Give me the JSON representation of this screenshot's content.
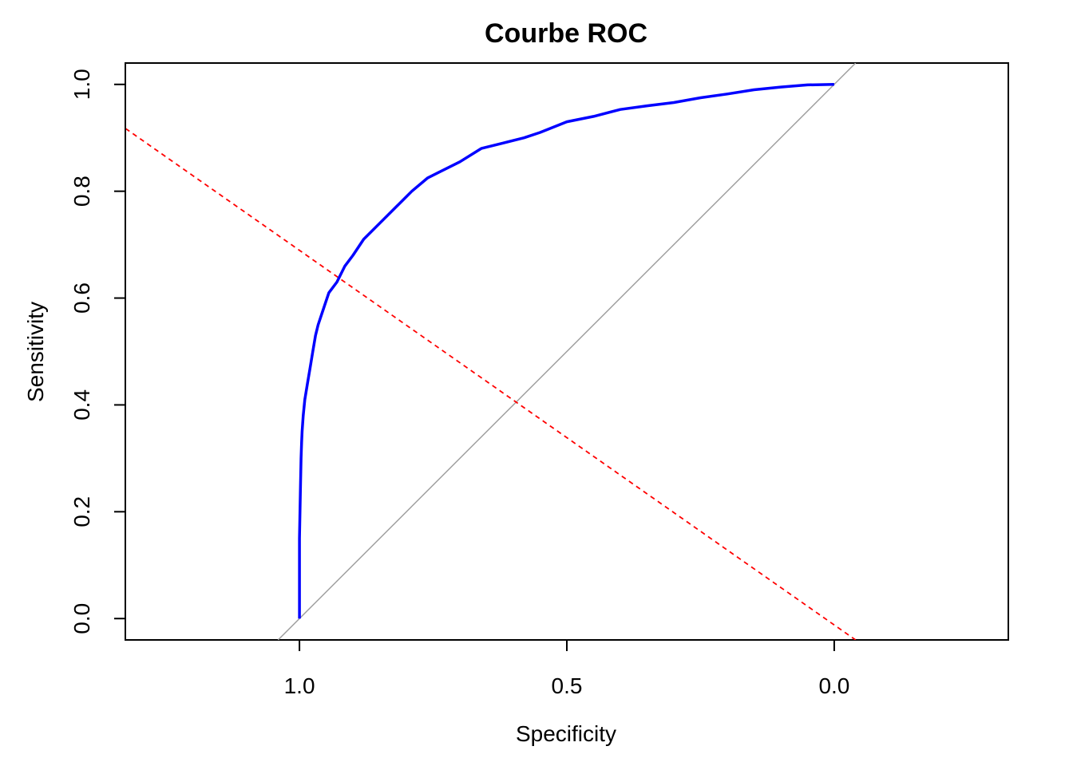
{
  "chart_data": {
    "type": "line",
    "title": "Courbe ROC",
    "xlabel": "Specificity",
    "ylabel": "Sensitivity",
    "xlim": [
      1.3256,
      -0.3256
    ],
    "ylim": [
      -0.04,
      1.04
    ],
    "x_ticks": [
      {
        "value": 1.0,
        "label": "1.0"
      },
      {
        "value": 0.5,
        "label": "0.5"
      },
      {
        "value": 0.0,
        "label": "0.0"
      }
    ],
    "y_ticks": [
      {
        "value": 0.0,
        "label": "0.0"
      },
      {
        "value": 0.2,
        "label": "0.2"
      },
      {
        "value": 0.4,
        "label": "0.4"
      },
      {
        "value": 0.6,
        "label": "0.6"
      },
      {
        "value": 0.8,
        "label": "0.8"
      },
      {
        "value": 1.0,
        "label": "1.0"
      }
    ],
    "grid": false,
    "colors": {
      "roc_curve": "#0000ff",
      "reference_diagonal": "#a0a0a0",
      "red_dashed_line": "#ff0000"
    },
    "series": [
      {
        "role": "roc_curve",
        "x": [
          1.0,
          1.0,
          0.998,
          0.997,
          0.996,
          0.995,
          0.993,
          0.99,
          0.985,
          0.98,
          0.975,
          0.97,
          0.965,
          0.955,
          0.945,
          0.93,
          0.915,
          0.9,
          0.88,
          0.85,
          0.82,
          0.79,
          0.76,
          0.74,
          0.7,
          0.66,
          0.62,
          0.58,
          0.55,
          0.5,
          0.45,
          0.4,
          0.35,
          0.3,
          0.25,
          0.2,
          0.15,
          0.1,
          0.05,
          0.0
        ],
        "y": [
          0.0,
          0.15,
          0.25,
          0.3,
          0.33,
          0.35,
          0.38,
          0.41,
          0.44,
          0.47,
          0.5,
          0.53,
          0.55,
          0.58,
          0.61,
          0.63,
          0.66,
          0.68,
          0.71,
          0.74,
          0.77,
          0.8,
          0.825,
          0.835,
          0.855,
          0.88,
          0.89,
          0.9,
          0.91,
          0.93,
          0.94,
          0.953,
          0.96,
          0.966,
          0.975,
          0.982,
          0.99,
          0.995,
          0.999,
          1.0
        ]
      },
      {
        "role": "reference_diagonal",
        "x": [
          1.04,
          -0.04
        ],
        "y": [
          -0.04,
          1.04
        ]
      },
      {
        "role": "red_dashed_line",
        "x": [
          1.5,
          -0.04
        ],
        "y": [
          1.04,
          -0.04
        ]
      }
    ]
  }
}
